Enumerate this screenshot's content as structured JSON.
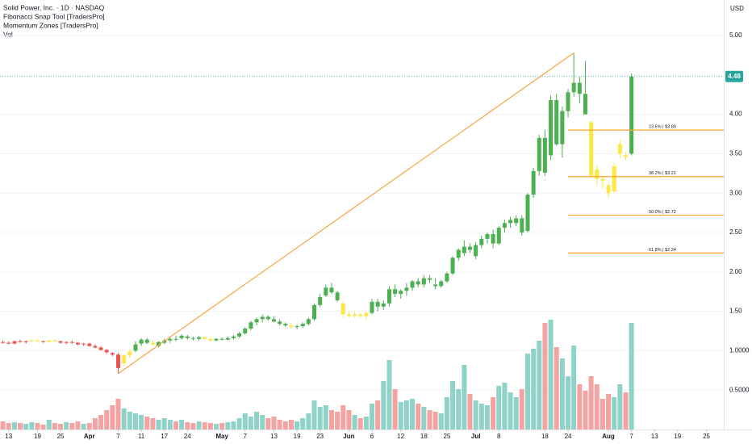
{
  "chart_data": {
    "type": "candlestick",
    "title": "Solid Power, Inc. · 1D · NASDAQ",
    "indicators": [
      "Fibonacci Snap Tool [TradersPro]",
      "Momentum Zones [TradersPro]",
      "Vol"
    ],
    "currency": "USD",
    "ylim": [
      0,
      5.4
    ],
    "yticks": [
      {
        "value": 5,
        "label": "5.00"
      },
      {
        "value": 4.5,
        "label": "4.50"
      },
      {
        "value": 4,
        "label": "4.00"
      },
      {
        "value": 3.5,
        "label": "3.50"
      },
      {
        "value": 3,
        "label": "3.00"
      },
      {
        "value": 2.5,
        "label": "2.50"
      },
      {
        "value": 2,
        "label": "2.00"
      },
      {
        "value": 1.5,
        "label": "1.50"
      },
      {
        "value": 1,
        "label": "1.0000"
      },
      {
        "value": 0.5,
        "label": "0.5000"
      }
    ],
    "xlim": [
      -0.5,
      125
    ],
    "xticks": [
      {
        "value": 1,
        "label": "13"
      },
      {
        "value": 6,
        "label": "19"
      },
      {
        "value": 10,
        "label": "25"
      },
      {
        "value": 15,
        "label": "Apr"
      },
      {
        "value": 20,
        "label": "7"
      },
      {
        "value": 24,
        "label": "11"
      },
      {
        "value": 28,
        "label": "17"
      },
      {
        "value": 32,
        "label": "24"
      },
      {
        "value": 38,
        "label": "May"
      },
      {
        "value": 42,
        "label": "7"
      },
      {
        "value": 47,
        "label": "13"
      },
      {
        "value": 51,
        "label": "19"
      },
      {
        "value": 55,
        "label": "23"
      },
      {
        "value": 60,
        "label": "Jun"
      },
      {
        "value": 64,
        "label": "6"
      },
      {
        "value": 69,
        "label": "12"
      },
      {
        "value": 73,
        "label": "18"
      },
      {
        "value": 77,
        "label": "25"
      },
      {
        "value": 82,
        "label": "Jul"
      },
      {
        "value": 86,
        "label": "8"
      },
      {
        "value": 94,
        "label": "18"
      },
      {
        "value": 98,
        "label": "24"
      },
      {
        "value": 105,
        "label": "Aug"
      },
      {
        "value": 109,
        "label": "7"
      },
      {
        "value": 113,
        "label": "13"
      },
      {
        "value": 117,
        "label": "19"
      },
      {
        "value": 122,
        "label": "25"
      }
    ],
    "volume_lim": [
      0,
      150
    ],
    "zone_colors": {
      "g": "#4caf50",
      "r": "#ef5350",
      "y": "#fde745"
    },
    "volume_colors": {
      "up": "#8fd3c8",
      "down": "#f4a3a3"
    },
    "grid": true,
    "candles": [
      [
        1.11,
        1.13,
        1.09,
        1.1,
        10,
        "r"
      ],
      [
        1.1,
        1.12,
        1.08,
        1.09,
        8,
        "r"
      ],
      [
        1.09,
        1.13,
        1.08,
        1.12,
        9,
        "r"
      ],
      [
        1.12,
        1.14,
        1.1,
        1.11,
        8,
        "r"
      ],
      [
        1.11,
        1.13,
        1.09,
        1.12,
        7,
        "r"
      ],
      [
        1.12,
        1.14,
        1.11,
        1.13,
        9,
        "y"
      ],
      [
        1.13,
        1.15,
        1.11,
        1.12,
        8,
        "y"
      ],
      [
        1.12,
        1.13,
        1.1,
        1.11,
        6,
        "r"
      ],
      [
        1.11,
        1.14,
        1.1,
        1.13,
        12,
        "y"
      ],
      [
        1.13,
        1.15,
        1.11,
        1.12,
        8,
        "y"
      ],
      [
        1.12,
        1.13,
        1.09,
        1.1,
        7,
        "r"
      ],
      [
        1.1,
        1.12,
        1.08,
        1.11,
        9,
        "r"
      ],
      [
        1.11,
        1.13,
        1.09,
        1.1,
        8,
        "r"
      ],
      [
        1.1,
        1.11,
        1.07,
        1.08,
        10,
        "r"
      ],
      [
        1.08,
        1.1,
        1.06,
        1.09,
        7,
        "r"
      ],
      [
        1.09,
        1.1,
        1.05,
        1.06,
        8,
        "r"
      ],
      [
        1.06,
        1.08,
        1.03,
        1.04,
        14,
        "r"
      ],
      [
        1.04,
        1.06,
        1.0,
        1.01,
        18,
        "r"
      ],
      [
        1.01,
        1.02,
        0.96,
        0.98,
        24,
        "r"
      ],
      [
        0.97,
        0.98,
        0.93,
        0.95,
        30,
        "r"
      ],
      [
        0.95,
        0.97,
        0.71,
        0.78,
        38,
        "r"
      ],
      [
        0.84,
        0.96,
        0.8,
        0.94,
        26,
        "y"
      ],
      [
        0.94,
        1.02,
        0.91,
        0.99,
        22,
        "y"
      ],
      [
        1.0,
        1.12,
        0.98,
        1.08,
        20,
        "g"
      ],
      [
        1.09,
        1.16,
        1.06,
        1.14,
        18,
        "g"
      ],
      [
        1.14,
        1.16,
        1.08,
        1.1,
        16,
        "g"
      ],
      [
        1.1,
        1.13,
        1.06,
        1.08,
        14,
        "y"
      ],
      [
        1.06,
        1.12,
        1.04,
        1.11,
        12,
        "g"
      ],
      [
        1.1,
        1.15,
        1.08,
        1.13,
        14,
        "g"
      ],
      [
        1.13,
        1.17,
        1.1,
        1.15,
        12,
        "g"
      ],
      [
        1.15,
        1.19,
        1.12,
        1.14,
        10,
        "g"
      ],
      [
        1.16,
        1.21,
        1.14,
        1.19,
        12,
        "g"
      ],
      [
        1.18,
        1.2,
        1.14,
        1.16,
        9,
        "g"
      ],
      [
        1.16,
        1.18,
        1.13,
        1.15,
        8,
        "g"
      ],
      [
        1.15,
        1.19,
        1.13,
        1.17,
        10,
        "g"
      ],
      [
        1.17,
        1.18,
        1.14,
        1.15,
        9,
        "y"
      ],
      [
        1.15,
        1.17,
        1.12,
        1.13,
        8,
        "y"
      ],
      [
        1.13,
        1.16,
        1.12,
        1.15,
        7,
        "g"
      ],
      [
        1.15,
        1.17,
        1.13,
        1.14,
        8,
        "g"
      ],
      [
        1.14,
        1.18,
        1.13,
        1.16,
        9,
        "g"
      ],
      [
        1.16,
        1.2,
        1.14,
        1.18,
        10,
        "g"
      ],
      [
        1.18,
        1.24,
        1.16,
        1.22,
        14,
        "g"
      ],
      [
        1.22,
        1.3,
        1.2,
        1.28,
        20,
        "g"
      ],
      [
        1.28,
        1.38,
        1.26,
        1.36,
        16,
        "g"
      ],
      [
        1.36,
        1.42,
        1.32,
        1.4,
        22,
        "g"
      ],
      [
        1.4,
        1.46,
        1.36,
        1.43,
        18,
        "g"
      ],
      [
        1.43,
        1.45,
        1.38,
        1.4,
        14,
        "g"
      ],
      [
        1.4,
        1.44,
        1.36,
        1.37,
        16,
        "g"
      ],
      [
        1.37,
        1.4,
        1.32,
        1.34,
        12,
        "g"
      ],
      [
        1.34,
        1.36,
        1.3,
        1.32,
        10,
        "g"
      ],
      [
        1.32,
        1.36,
        1.28,
        1.3,
        12,
        "y"
      ],
      [
        1.3,
        1.33,
        1.27,
        1.31,
        10,
        "g"
      ],
      [
        1.31,
        1.36,
        1.29,
        1.34,
        14,
        "g"
      ],
      [
        1.34,
        1.42,
        1.32,
        1.4,
        20,
        "g"
      ],
      [
        1.4,
        1.6,
        1.38,
        1.58,
        36,
        "g"
      ],
      [
        1.58,
        1.72,
        1.55,
        1.68,
        28,
        "g"
      ],
      [
        1.7,
        1.84,
        1.68,
        1.8,
        30,
        "g"
      ],
      [
        1.8,
        1.86,
        1.72,
        1.74,
        24,
        "g"
      ],
      [
        1.74,
        1.76,
        1.62,
        1.64,
        22,
        "g"
      ],
      [
        1.6,
        1.62,
        1.42,
        1.46,
        30,
        "y"
      ],
      [
        1.46,
        1.5,
        1.42,
        1.44,
        24,
        "y"
      ],
      [
        1.44,
        1.5,
        1.42,
        1.46,
        18,
        "y"
      ],
      [
        1.46,
        1.48,
        1.42,
        1.44,
        14,
        "y"
      ],
      [
        1.44,
        1.5,
        1.4,
        1.48,
        16,
        "y"
      ],
      [
        1.48,
        1.66,
        1.46,
        1.62,
        32,
        "g"
      ],
      [
        1.62,
        1.66,
        1.5,
        1.56,
        36,
        "g"
      ],
      [
        1.56,
        1.64,
        1.52,
        1.6,
        60,
        "g"
      ],
      [
        1.6,
        1.82,
        1.56,
        1.78,
        86,
        "g"
      ],
      [
        1.78,
        1.84,
        1.68,
        1.72,
        50,
        "g"
      ],
      [
        1.72,
        1.78,
        1.66,
        1.76,
        34,
        "g"
      ],
      [
        1.76,
        1.86,
        1.7,
        1.8,
        36,
        "g"
      ],
      [
        1.8,
        1.9,
        1.76,
        1.88,
        38,
        "g"
      ],
      [
        1.88,
        1.92,
        1.8,
        1.84,
        32,
        "g"
      ],
      [
        1.84,
        1.96,
        1.8,
        1.92,
        28,
        "g"
      ],
      [
        1.92,
        1.96,
        1.86,
        1.9,
        24,
        "g"
      ],
      [
        1.84,
        1.92,
        1.78,
        1.82,
        22,
        "g"
      ],
      [
        1.82,
        1.9,
        1.8,
        1.88,
        20,
        "g"
      ],
      [
        1.88,
        2.0,
        1.86,
        1.98,
        40,
        "g"
      ],
      [
        1.98,
        2.2,
        1.96,
        2.18,
        60,
        "g"
      ],
      [
        2.18,
        2.3,
        2.14,
        2.28,
        50,
        "g"
      ],
      [
        2.24,
        2.4,
        2.2,
        2.32,
        80,
        "g"
      ],
      [
        2.32,
        2.36,
        2.24,
        2.28,
        44,
        "g"
      ],
      [
        2.2,
        2.38,
        2.16,
        2.34,
        36,
        "g"
      ],
      [
        2.34,
        2.46,
        2.3,
        2.42,
        32,
        "g"
      ],
      [
        2.42,
        2.5,
        2.36,
        2.48,
        30,
        "g"
      ],
      [
        2.48,
        2.54,
        2.3,
        2.36,
        40,
        "g"
      ],
      [
        2.36,
        2.58,
        2.34,
        2.56,
        54,
        "g"
      ],
      [
        2.56,
        2.66,
        2.5,
        2.62,
        58,
        "g"
      ],
      [
        2.62,
        2.7,
        2.56,
        2.66,
        46,
        "g"
      ],
      [
        2.62,
        2.72,
        2.58,
        2.68,
        40,
        "g"
      ],
      [
        2.68,
        2.72,
        2.46,
        2.5,
        50,
        "g"
      ],
      [
        2.52,
        3.0,
        2.5,
        2.98,
        94,
        "g"
      ],
      [
        2.98,
        3.32,
        2.94,
        3.28,
        100,
        "g"
      ],
      [
        3.28,
        3.74,
        3.22,
        3.7,
        110,
        "g"
      ],
      [
        3.7,
        3.8,
        3.22,
        3.26,
        132,
        "g"
      ],
      [
        3.48,
        4.24,
        3.42,
        4.18,
        136,
        "g"
      ],
      [
        4.18,
        4.26,
        3.6,
        3.62,
        102,
        "g"
      ],
      [
        3.62,
        4.1,
        3.45,
        4.04,
        88,
        "g"
      ],
      [
        4.04,
        4.32,
        3.96,
        4.28,
        66,
        "g"
      ],
      [
        4.28,
        4.78,
        4.22,
        4.4,
        104,
        "g"
      ],
      [
        4.4,
        4.48,
        4.14,
        4.26,
        56,
        "g"
      ],
      [
        4.26,
        4.68,
        4.0,
        4.0,
        48,
        "g"
      ],
      [
        3.9,
        3.92,
        3.2,
        3.22,
        66,
        "y"
      ],
      [
        3.3,
        3.36,
        3.1,
        3.18,
        56,
        "y"
      ],
      [
        3.18,
        3.2,
        3.06,
        3.16,
        38,
        "y"
      ],
      [
        3.1,
        3.14,
        2.94,
        3.0,
        44,
        "y"
      ],
      [
        3.02,
        3.38,
        3.0,
        3.34,
        40,
        "y"
      ],
      [
        3.5,
        3.68,
        3.44,
        3.62,
        56,
        "y"
      ],
      [
        3.48,
        3.52,
        3.42,
        3.46,
        46,
        "y"
      ],
      [
        3.5,
        4.52,
        3.48,
        4.48,
        132,
        "g"
      ]
    ],
    "trendline": {
      "from": [
        20,
        0.71
      ],
      "to": [
        99,
        4.78
      ],
      "color": "#f7a540"
    },
    "fib_start": 98,
    "fib_color": "#f5a623",
    "fib_levels": [
      {
        "label": "23.6% | $3.80",
        "value": 3.8
      },
      {
        "label": "38.2% | $3.21",
        "value": 3.21
      },
      {
        "label": "50.0% | $2.72",
        "value": 2.72
      },
      {
        "label": "61.8% | $2.24",
        "value": 2.24
      }
    ],
    "last_price": 4.48,
    "last_price_color": "#26a69a"
  }
}
